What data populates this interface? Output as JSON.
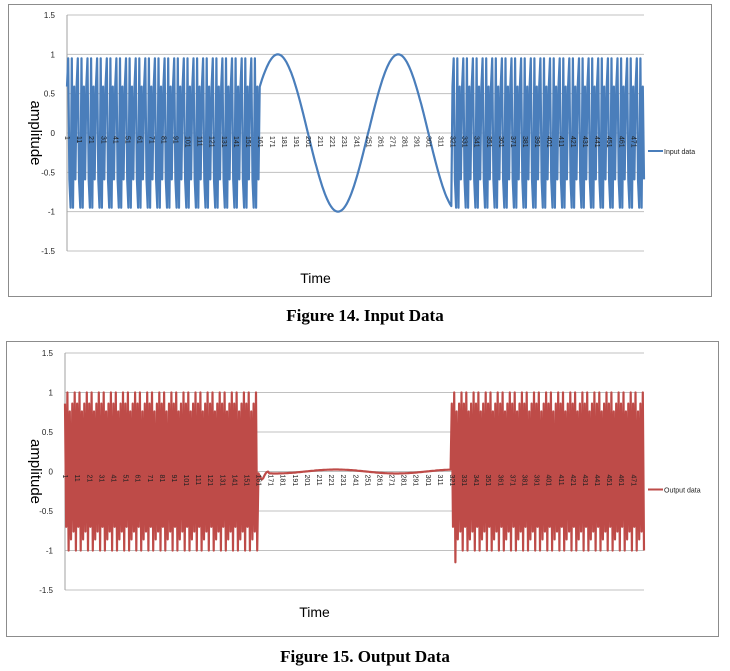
{
  "figures": [
    {
      "caption": "Figure 14. Input Data",
      "ylabel": "amplitude",
      "xlabel": "Time",
      "legend": "Input data",
      "color": "#4a7ebb"
    },
    {
      "caption": "Figure 15. Output Data",
      "ylabel": "amplitude",
      "xlabel": "Time",
      "legend": "Output data",
      "color": "#be4b48"
    }
  ],
  "chart_data": [
    {
      "type": "line",
      "title": "Figure 14. Input Data",
      "xlabel": "Time",
      "ylabel": "amplitude",
      "ylim": [
        -1.5,
        1.5
      ],
      "yticks": [
        1.5,
        1,
        0.5,
        0,
        -0.5,
        -1,
        -1.5
      ],
      "xticks": [
        1,
        11,
        21,
        31,
        41,
        51,
        61,
        71,
        81,
        91,
        101,
        111,
        121,
        131,
        141,
        151,
        161,
        171,
        181,
        191,
        201,
        211,
        221,
        231,
        241,
        251,
        261,
        271,
        281,
        291,
        301,
        311,
        321,
        331,
        341,
        351,
        361,
        371,
        381,
        391,
        401,
        411,
        421,
        431,
        441,
        451,
        461,
        471
      ],
      "x_range": [
        1,
        480
      ],
      "grid": true,
      "legend_position": "right",
      "series": [
        {
          "name": "Input data",
          "color": "#4a7ebb",
          "segments": [
            {
              "x_from": 1,
              "x_to": 160,
              "kind": "fast_oscillation",
              "period": 5,
              "peak_values": [
                0.95,
                0.59,
                -0.59,
                -0.95
              ]
            },
            {
              "x_from": 161,
              "x_to": 320,
              "kind": "sine",
              "amplitude": 1,
              "period": 100,
              "peaks_at": [
                176,
                276
              ],
              "troughs_at": [
                226,
                324
              ]
            },
            {
              "x_from": 321,
              "x_to": 480,
              "kind": "fast_oscillation",
              "period": 5,
              "peak_values": [
                0.95,
                0.59,
                -0.59,
                -0.95
              ]
            }
          ]
        }
      ]
    },
    {
      "type": "line",
      "title": "Figure 15. Output Data",
      "xlabel": "Time",
      "ylabel": "amplitude",
      "ylim": [
        -1.5,
        1.5
      ],
      "yticks": [
        1.5,
        1,
        0.5,
        0,
        -0.5,
        -1,
        -1.5
      ],
      "xticks": [
        1,
        11,
        21,
        31,
        41,
        51,
        61,
        71,
        81,
        91,
        101,
        111,
        121,
        131,
        141,
        151,
        161,
        171,
        181,
        191,
        201,
        211,
        221,
        231,
        241,
        251,
        261,
        271,
        281,
        291,
        301,
        311,
        321,
        331,
        341,
        351,
        361,
        371,
        381,
        391,
        401,
        411,
        421,
        431,
        441,
        451,
        461,
        471
      ],
      "x_range": [
        1,
        480
      ],
      "grid": true,
      "legend_position": "right",
      "series": [
        {
          "name": "Output data",
          "color": "#be4b48",
          "segments": [
            {
              "x_from": 1,
              "x_to": 160,
              "kind": "fast_oscillation",
              "period": 5,
              "peak_values": [
                1.0,
                0.86,
                0.76,
                -0.76,
                -0.86,
                -1.0
              ]
            },
            {
              "x_from": 161,
              "x_to": 320,
              "kind": "near_zero",
              "transient_min": {
                "x": 164,
                "y": -0.1
              },
              "max": 0.03,
              "min": -0.03
            },
            {
              "x_from": 321,
              "x_to": 480,
              "kind": "fast_oscillation",
              "period": 5,
              "peak_values": [
                1.0,
                0.86,
                0.76,
                -0.76,
                -0.86,
                -1.0
              ],
              "transient_min": {
                "x": 324,
                "y": -1.15
              }
            }
          ]
        }
      ]
    }
  ]
}
